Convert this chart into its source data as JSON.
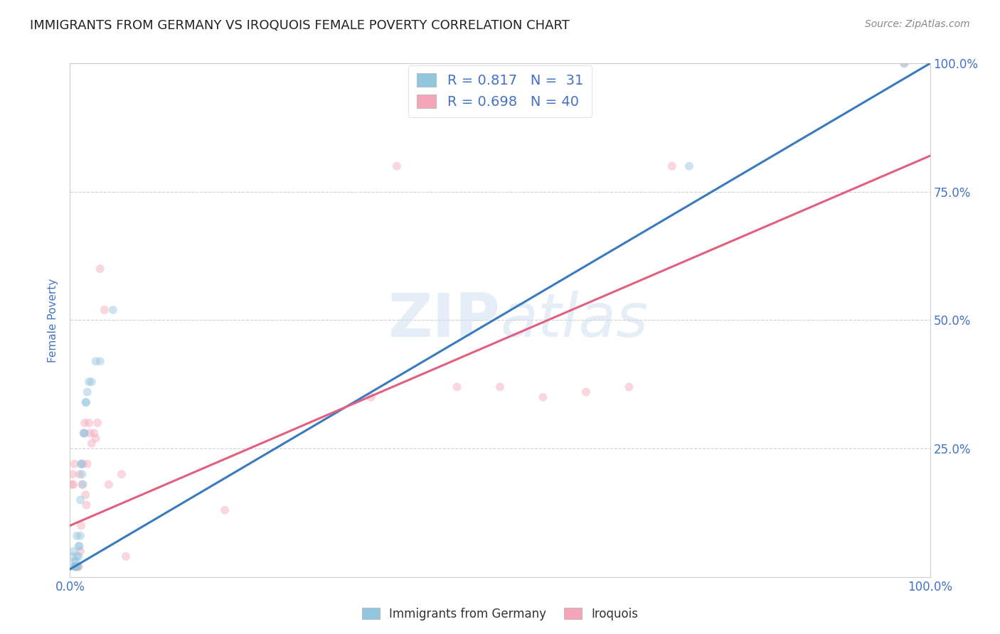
{
  "title": "IMMIGRANTS FROM GERMANY VS IROQUOIS FEMALE POVERTY CORRELATION CHART",
  "source": "Source: ZipAtlas.com",
  "ylabel": "Female Poverty",
  "watermark": "ZIPatlas",
  "blue_R": 0.817,
  "blue_N": 31,
  "pink_R": 0.698,
  "pink_N": 40,
  "blue_color": "#92c5de",
  "pink_color": "#f4a6b8",
  "blue_line_color": "#3a7abf",
  "pink_line_color": "#e06080",
  "title_color": "#222222",
  "axis_label_color": "#4472c4",
  "legend_r_color": "#4472c4",
  "background_color": "#ffffff",
  "grid_color": "#cccccc",
  "blue_x": [
    0.003,
    0.004,
    0.005,
    0.005,
    0.006,
    0.007,
    0.007,
    0.008,
    0.008,
    0.009,
    0.01,
    0.01,
    0.011,
    0.012,
    0.012,
    0.013,
    0.013,
    0.014,
    0.015,
    0.016,
    0.017,
    0.018,
    0.019,
    0.02,
    0.022,
    0.025,
    0.03,
    0.035,
    0.05,
    0.72,
    0.97
  ],
  "blue_y": [
    0.04,
    0.05,
    0.02,
    0.03,
    0.02,
    0.02,
    0.03,
    0.04,
    0.08,
    0.02,
    0.04,
    0.06,
    0.06,
    0.08,
    0.15,
    0.22,
    0.22,
    0.2,
    0.18,
    0.28,
    0.28,
    0.34,
    0.34,
    0.36,
    0.38,
    0.38,
    0.42,
    0.42,
    0.52,
    0.8,
    1.0
  ],
  "pink_x": [
    0.002,
    0.003,
    0.004,
    0.005,
    0.006,
    0.007,
    0.008,
    0.009,
    0.01,
    0.011,
    0.012,
    0.013,
    0.014,
    0.015,
    0.016,
    0.017,
    0.018,
    0.019,
    0.02,
    0.022,
    0.023,
    0.025,
    0.028,
    0.03,
    0.032,
    0.035,
    0.04,
    0.045,
    0.06,
    0.065,
    0.18,
    0.35,
    0.38,
    0.45,
    0.5,
    0.55,
    0.6,
    0.65,
    0.7,
    0.97
  ],
  "pink_y": [
    0.18,
    0.2,
    0.18,
    0.22,
    0.02,
    0.02,
    0.02,
    0.02,
    0.02,
    0.2,
    0.05,
    0.1,
    0.18,
    0.22,
    0.28,
    0.3,
    0.16,
    0.14,
    0.22,
    0.3,
    0.28,
    0.26,
    0.28,
    0.27,
    0.3,
    0.6,
    0.52,
    0.18,
    0.2,
    0.04,
    0.13,
    0.35,
    0.8,
    0.37,
    0.37,
    0.35,
    0.36,
    0.37,
    0.8,
    1.0
  ],
  "blue_trend_x": [
    0.0,
    1.0
  ],
  "blue_trend_y": [
    0.015,
    1.0
  ],
  "pink_trend_x": [
    0.0,
    1.0
  ],
  "pink_trend_y": [
    0.1,
    0.82
  ],
  "xlim": [
    0.0,
    1.0
  ],
  "ylim": [
    0.0,
    1.0
  ],
  "xticks": [
    0.0,
    0.25,
    0.5,
    0.75,
    1.0
  ],
  "xticklabels": [
    "0.0%",
    "",
    "",
    "",
    "100.0%"
  ],
  "yticks": [
    0.25,
    0.5,
    0.75,
    1.0
  ],
  "yticklabels": [
    "25.0%",
    "50.0%",
    "75.0%",
    "100.0%"
  ],
  "marker_size": 75,
  "marker_alpha": 0.45,
  "line_width": 2.2
}
